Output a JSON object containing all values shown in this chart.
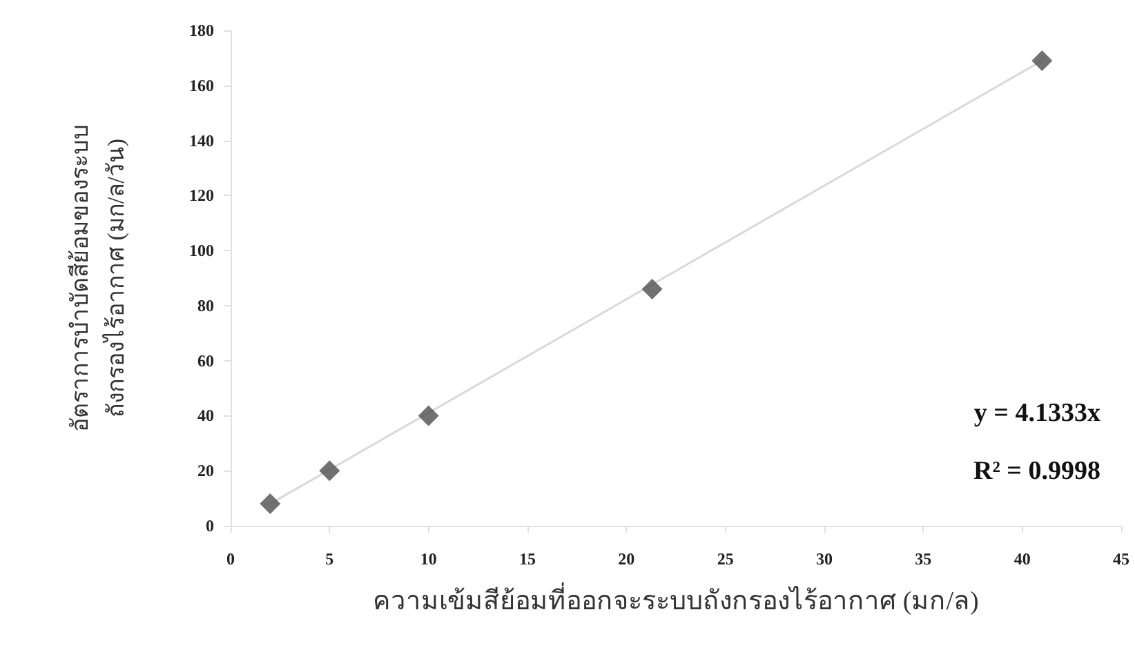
{
  "chart_data": {
    "type": "scatter",
    "xlabel": "ความเข้มสีย้อมที่ออกจะระบบถังกรองไร้อากาศ (มก/ล)",
    "ylabel": "อัตราการบำบัดสีย้อมของระบบ\nถังกรองไร้อากาศ (มก/ล/วัน)",
    "annotations": [
      "y = 4.1333x",
      "R² = 0.9998"
    ],
    "xlim": [
      0,
      45
    ],
    "xticks": [
      0,
      5,
      10,
      15,
      20,
      25,
      30,
      35,
      40,
      45
    ],
    "ylim": [
      0,
      180
    ],
    "yticks": [
      0,
      20,
      40,
      60,
      80,
      100,
      120,
      140,
      160,
      180
    ],
    "grid": false,
    "series": [
      {
        "type": "line",
        "color": "#d9d9d9",
        "x": [
          2,
          41
        ],
        "values": [
          8,
          169
        ],
        "marker": "none",
        "line_style": "solid"
      },
      {
        "color": "#4d4d4d",
        "x": [
          2,
          5,
          10,
          21.3,
          41
        ],
        "values": [
          8,
          20,
          40,
          86,
          169
        ],
        "marker": "diamond"
      }
    ]
  }
}
